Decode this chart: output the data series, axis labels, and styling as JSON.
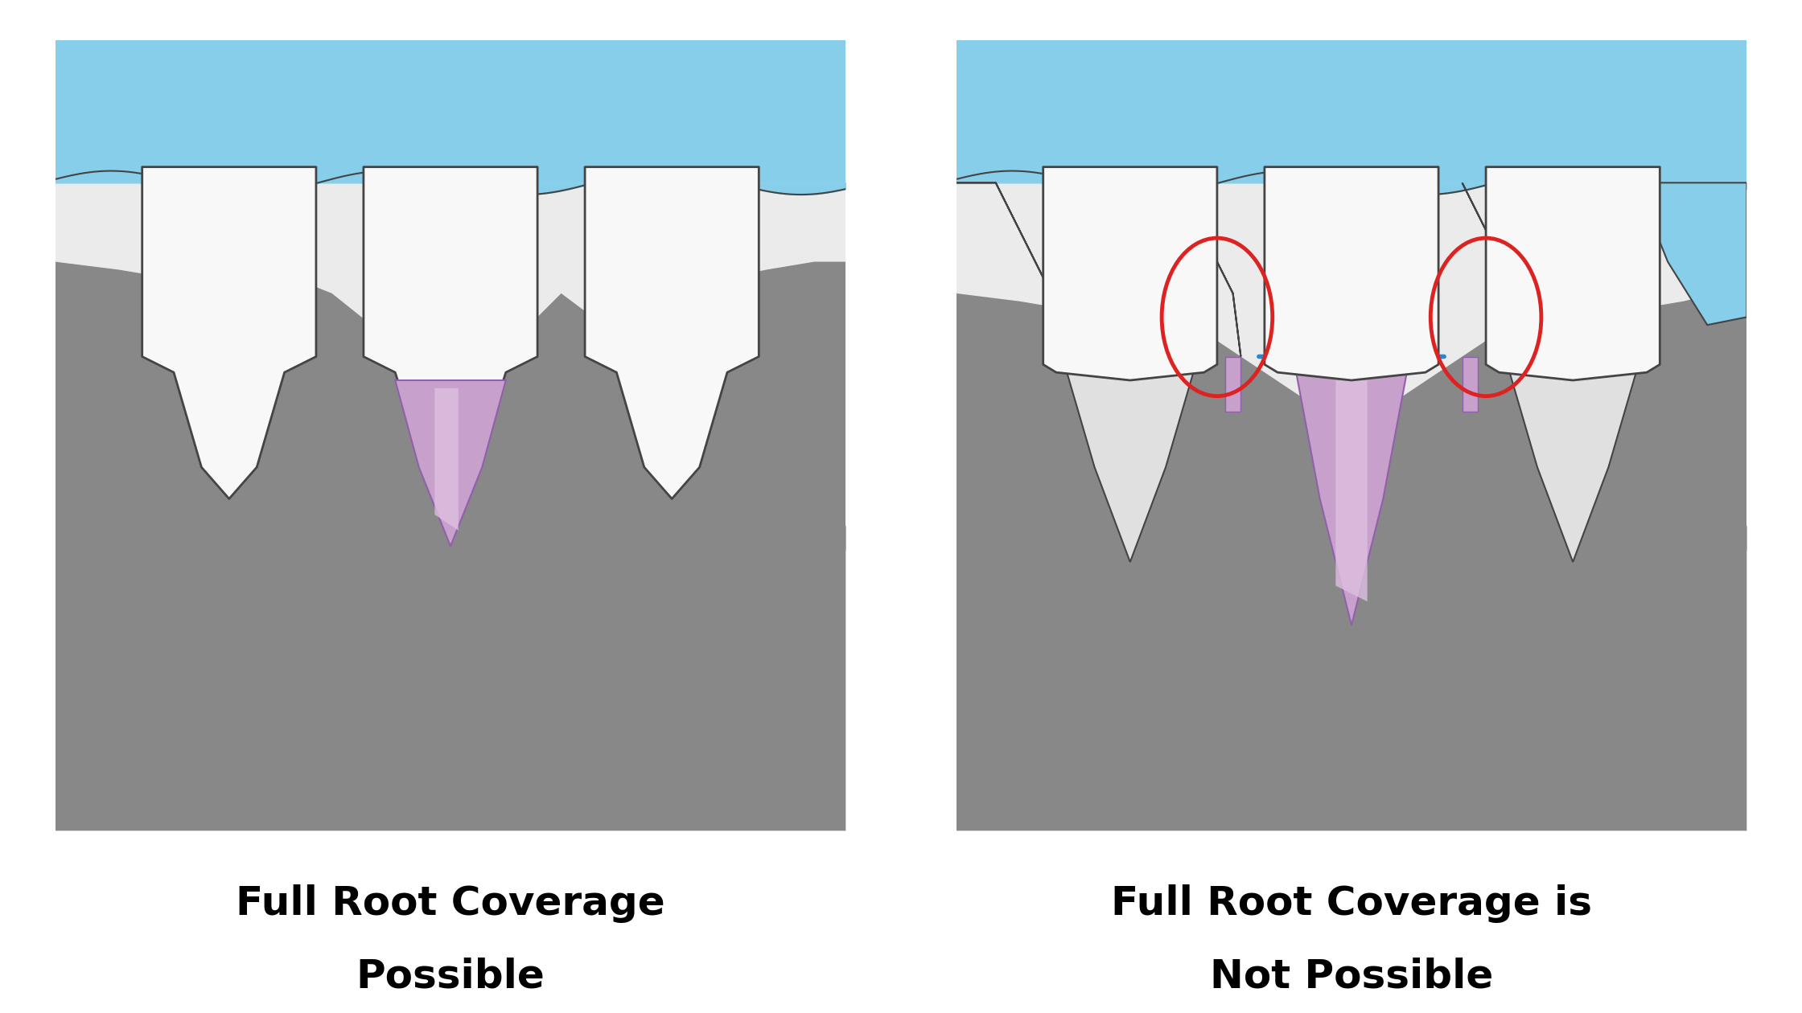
{
  "bg_color": "#ffffff",
  "panel_bg": "#ebebeb",
  "blue_gum": "#87ceeb",
  "blue_gum_dark": "#5ab0d8",
  "gray_bone": "#888888",
  "gray_bone2": "#aaaaaa",
  "light_area": "#d8d8e0",
  "tooth_color": "#f8f8f8",
  "tooth_outline": "#444444",
  "root_pink": "#c8a0cc",
  "root_pink_light": "#ddc0e0",
  "pink_arrow_color": "#ee1188",
  "blue_arrow_color": "#2288dd",
  "red_circle_color": "#dd2222",
  "label1_line1": "Full Root Coverage",
  "label1_line2": "Possible",
  "label2_line1": "Full Root Coverage is",
  "label2_line2": "Not Possible",
  "label_fontsize": 36,
  "label_color": "#000000"
}
